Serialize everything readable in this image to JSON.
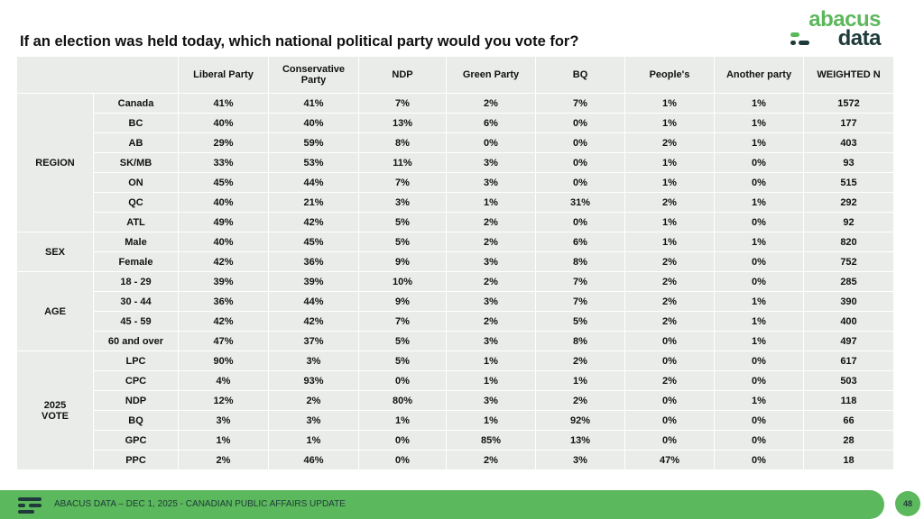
{
  "title": "If an election was held today, which national political party would you vote for?",
  "logo": {
    "top": "abacus",
    "bottom": "data"
  },
  "table": {
    "columns": [
      "Liberal Party",
      "Conservative Party",
      "NDP",
      "Green Party",
      "BQ",
      "People's",
      "Another party",
      "WEIGHTED N"
    ],
    "groups": [
      {
        "label": "REGION",
        "rows": [
          {
            "label": "Canada",
            "values": [
              "41%",
              "41%",
              "7%",
              "2%",
              "7%",
              "1%",
              "1%",
              "1572"
            ]
          },
          {
            "label": "BC",
            "values": [
              "40%",
              "40%",
              "13%",
              "6%",
              "0%",
              "1%",
              "1%",
              "177"
            ]
          },
          {
            "label": "AB",
            "values": [
              "29%",
              "59%",
              "8%",
              "0%",
              "0%",
              "2%",
              "1%",
              "403"
            ]
          },
          {
            "label": "SK/MB",
            "values": [
              "33%",
              "53%",
              "11%",
              "3%",
              "0%",
              "1%",
              "0%",
              "93"
            ]
          },
          {
            "label": "ON",
            "values": [
              "45%",
              "44%",
              "7%",
              "3%",
              "0%",
              "1%",
              "0%",
              "515"
            ]
          },
          {
            "label": "QC",
            "values": [
              "40%",
              "21%",
              "3%",
              "1%",
              "31%",
              "2%",
              "1%",
              "292"
            ]
          },
          {
            "label": "ATL",
            "values": [
              "49%",
              "42%",
              "5%",
              "2%",
              "0%",
              "1%",
              "0%",
              "92"
            ]
          }
        ]
      },
      {
        "label": "SEX",
        "rows": [
          {
            "label": "Male",
            "values": [
              "40%",
              "45%",
              "5%",
              "2%",
              "6%",
              "1%",
              "1%",
              "820"
            ]
          },
          {
            "label": "Female",
            "values": [
              "42%",
              "36%",
              "9%",
              "3%",
              "8%",
              "2%",
              "0%",
              "752"
            ]
          }
        ]
      },
      {
        "label": "AGE",
        "rows": [
          {
            "label": "18 - 29",
            "values": [
              "39%",
              "39%",
              "10%",
              "2%",
              "7%",
              "2%",
              "0%",
              "285"
            ]
          },
          {
            "label": "30 - 44",
            "values": [
              "36%",
              "44%",
              "9%",
              "3%",
              "7%",
              "2%",
              "1%",
              "390"
            ]
          },
          {
            "label": "45 - 59",
            "values": [
              "42%",
              "42%",
              "7%",
              "2%",
              "5%",
              "2%",
              "1%",
              "400"
            ]
          },
          {
            "label": "60 and over",
            "values": [
              "47%",
              "37%",
              "5%",
              "3%",
              "8%",
              "0%",
              "1%",
              "497"
            ]
          }
        ]
      },
      {
        "label": "2025 VOTE",
        "rows": [
          {
            "label": "LPC",
            "values": [
              "90%",
              "3%",
              "5%",
              "1%",
              "2%",
              "0%",
              "0%",
              "617"
            ]
          },
          {
            "label": "CPC",
            "values": [
              "4%",
              "93%",
              "0%",
              "1%",
              "1%",
              "2%",
              "0%",
              "503"
            ]
          },
          {
            "label": "NDP",
            "values": [
              "12%",
              "2%",
              "80%",
              "3%",
              "2%",
              "0%",
              "1%",
              "118"
            ]
          },
          {
            "label": "BQ",
            "values": [
              "3%",
              "3%",
              "1%",
              "1%",
              "92%",
              "0%",
              "0%",
              "66"
            ]
          },
          {
            "label": "GPC",
            "values": [
              "1%",
              "1%",
              "0%",
              "85%",
              "13%",
              "0%",
              "0%",
              "28"
            ]
          },
          {
            "label": "PPC",
            "values": [
              "2%",
              "46%",
              "0%",
              "2%",
              "3%",
              "47%",
              "0%",
              "18"
            ]
          }
        ]
      }
    ]
  },
  "footer": {
    "text": "ABACUS DATA – DEC 1, 2025 - CANADIAN PUBLIC AFFAIRS UPDATE",
    "page": "48"
  }
}
